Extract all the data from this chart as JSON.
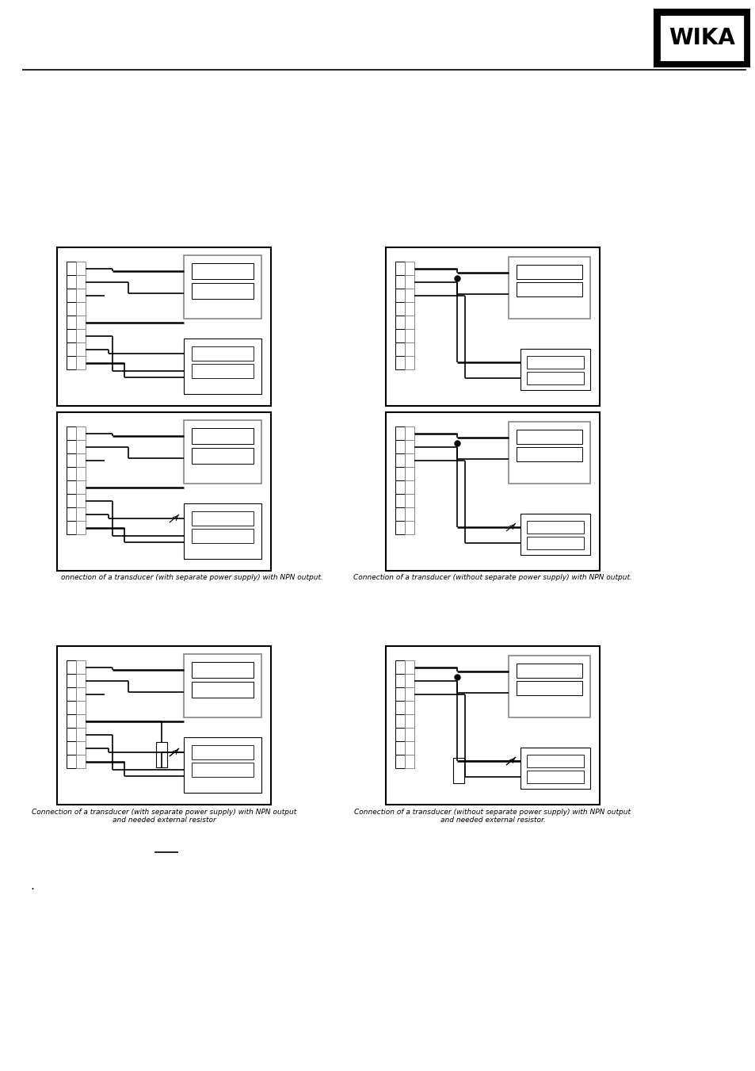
{
  "bg_color": "#ffffff",
  "line_color": "#000000",
  "gray_color": "#888888",
  "wika_text": "WIKA",
  "caption1_left": "onnection of a transducer (with separate power supply) with NPN output.",
  "caption1_right": "Connection of a transducer (without separate power supply) with NPN output.",
  "caption2_left": "Connection of a transducer (with separate power supply) with NPN output\nand needed external resistor",
  "caption2_right": "Connection of a transducer (without separate power supply) with NPN output\nand needed external resistor.",
  "page_width": 9.54,
  "page_height": 13.51,
  "dpi": 100
}
